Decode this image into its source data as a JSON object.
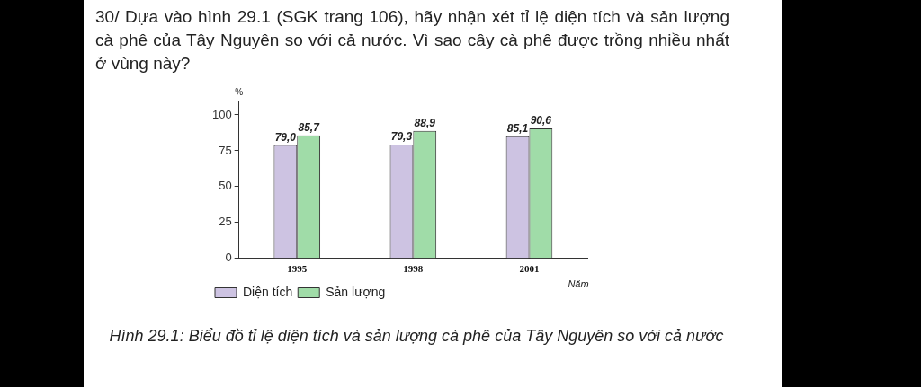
{
  "chart_data": {
    "type": "bar",
    "title": "30/  Dựa vào hình 29.1 (SGK trang 106), hãy nhận xét tỉ lệ diện tích và sản lượng cà phê của Tây Nguyên so với cả nước. Vì sao cây cà phê được trồng nhiều nhất ở vùng này?",
    "categories": [
      "1995",
      "1998",
      "2001"
    ],
    "series": [
      {
        "name": "Diện tích",
        "color": "#cdc3e2",
        "values": [
          79.0,
          79.3,
          85.1
        ],
        "value_labels": [
          "79,0",
          "79,3",
          "85,1"
        ]
      },
      {
        "name": "Sản lượng",
        "color": "#a0dca8",
        "values": [
          85.7,
          88.9,
          90.6
        ],
        "value_labels": [
          "85,7",
          "88,9",
          "90,6"
        ]
      }
    ],
    "xlabel": "Năm",
    "ylabel": "%",
    "ylim": [
      0,
      110
    ],
    "yticks": [
      0,
      25,
      50,
      75,
      100
    ],
    "grid": false,
    "legend": "bottom left",
    "annotations": [
      "Hình 29.1: Biểu đồ tỉ lệ diện tích và sản lượng cà phê của Tây Nguyên so với cả nước"
    ]
  }
}
